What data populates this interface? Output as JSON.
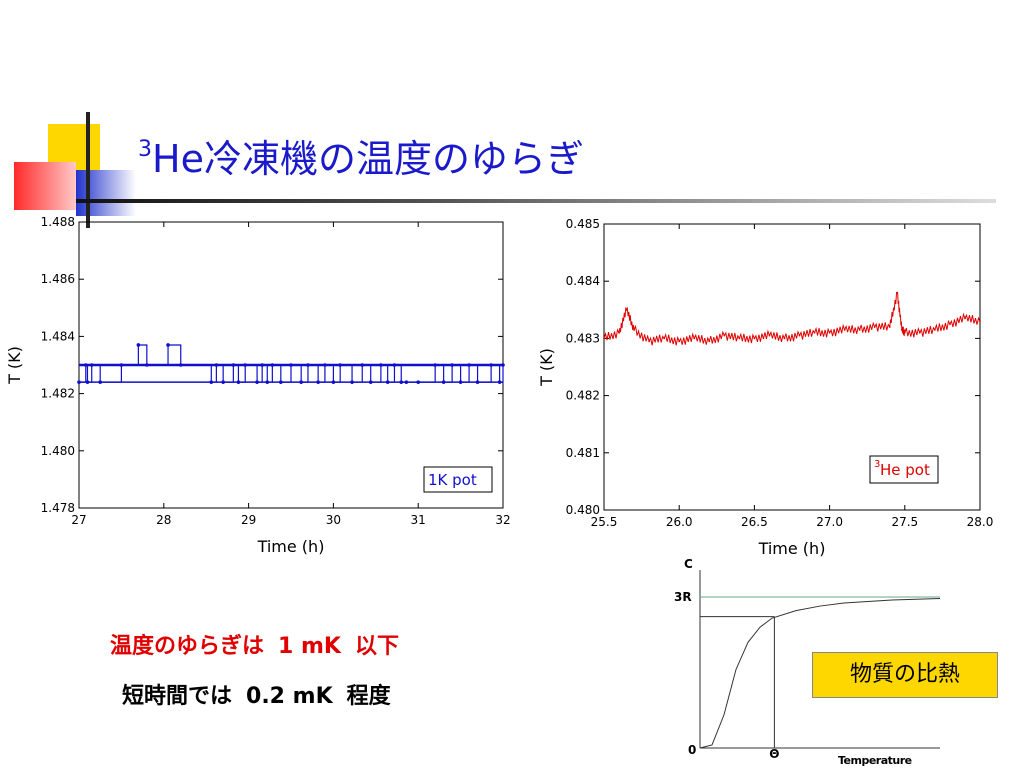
{
  "slide": {
    "title_sup": "3",
    "title_main": "He冷凍機の温度のゆらぎ",
    "line1_a": "温度のゆらぎは",
    "line1_b": "1 mK",
    "line1_c": "以下",
    "line2_a": "短時間では",
    "line2_b": "0.2 mK",
    "line2_c": "程度",
    "callout": "物質の比熱",
    "colors": {
      "title": "#1a1acc",
      "accent_red": "#e00000",
      "callout_bg": "#ffd700",
      "deco_yellow": "#ffd700",
      "deco_blue": "#2233cc",
      "deco_red": "#ff3b3b"
    }
  },
  "chart_data": [
    {
      "type": "line",
      "xlabel": "Time (h)",
      "ylabel": "T (K)",
      "xlim": [
        27,
        32
      ],
      "ylim": [
        1.478,
        1.488
      ],
      "x_ticks": [
        "27",
        "28",
        "29",
        "30",
        "31",
        "32"
      ],
      "y_ticks": [
        "1.478",
        "1.480",
        "1.482",
        "1.484",
        "1.486",
        "1.488"
      ],
      "legend": "1K pot",
      "legend_position": "bottom-right",
      "color": "#1010cc",
      "levels": [
        1.483,
        1.4824,
        1.4837
      ],
      "series": [
        {
          "x": [
            27.0,
            27.08,
            27.1,
            27.15,
            27.25,
            27.5,
            27.7,
            27.8,
            28.05,
            28.2,
            28.56,
            28.62,
            28.7,
            28.82,
            28.88,
            28.96,
            29.1,
            29.16,
            29.22,
            29.28,
            29.38,
            29.5,
            29.62,
            29.7,
            29.82,
            29.9,
            30.0,
            30.08,
            30.22,
            30.34,
            30.44,
            30.56,
            30.64,
            30.72,
            30.8,
            30.86,
            31.0,
            31.2,
            31.3,
            31.4,
            31.5,
            31.6,
            31.7,
            31.86,
            31.96,
            32.0
          ],
          "y": [
            1.4824,
            1.483,
            1.4824,
            1.483,
            1.4824,
            1.483,
            1.4837,
            1.483,
            1.4837,
            1.483,
            1.4824,
            1.483,
            1.4824,
            1.483,
            1.4824,
            1.483,
            1.4824,
            1.483,
            1.4824,
            1.483,
            1.4824,
            1.483,
            1.4824,
            1.483,
            1.4824,
            1.483,
            1.4824,
            1.483,
            1.4824,
            1.483,
            1.4824,
            1.483,
            1.4824,
            1.483,
            1.4824,
            1.4824,
            1.4824,
            1.483,
            1.4824,
            1.483,
            1.4824,
            1.483,
            1.4824,
            1.483,
            1.4824,
            1.483
          ]
        }
      ]
    },
    {
      "type": "line",
      "xlabel": "Time (h)",
      "ylabel": "T (K)",
      "xlim": [
        25.5,
        28.0
      ],
      "ylim": [
        0.48,
        0.485
      ],
      "x_ticks": [
        "25.5",
        "26.0",
        "26.5",
        "27.0",
        "27.5",
        "28.0"
      ],
      "y_ticks": [
        "0.480",
        "0.481",
        "0.482",
        "0.483",
        "0.484",
        "0.485"
      ],
      "legend_sup": "3",
      "legend": "He pot",
      "legend_position": "bottom-right",
      "color": "#e00000",
      "series": [
        {
          "x": [
            25.5,
            25.6,
            25.65,
            25.7,
            25.8,
            25.9,
            26.0,
            26.1,
            26.2,
            26.3,
            26.4,
            26.5,
            26.6,
            26.7,
            26.8,
            26.9,
            27.0,
            27.1,
            27.2,
            27.3,
            27.4,
            27.45,
            27.48,
            27.5,
            27.6,
            27.7,
            27.8,
            27.9,
            28.0
          ],
          "y": [
            0.483,
            0.4831,
            0.4835,
            0.48315,
            0.48295,
            0.483,
            0.48295,
            0.483,
            0.48295,
            0.48305,
            0.483,
            0.483,
            0.48305,
            0.483,
            0.48305,
            0.4831,
            0.4831,
            0.48315,
            0.48315,
            0.4832,
            0.4832,
            0.4838,
            0.48315,
            0.4831,
            0.4831,
            0.48315,
            0.48325,
            0.48335,
            0.4833
          ]
        }
      ]
    },
    {
      "type": "line",
      "xlabel": "Temperature",
      "ylabel": "C",
      "y_ref_label": "3R",
      "x_origin_label": "0",
      "x_marker_label": "Θ",
      "x": [
        0,
        0.05,
        0.1,
        0.15,
        0.2,
        0.25,
        0.3,
        0.4,
        0.5,
        0.6,
        0.7,
        0.8,
        0.9,
        1.0
      ],
      "y": [
        0,
        0.02,
        0.22,
        0.52,
        0.7,
        0.8,
        0.86,
        0.91,
        0.94,
        0.96,
        0.97,
        0.98,
        0.985,
        0.99
      ],
      "marker_x": 0.31,
      "marker_y": 0.87
    }
  ]
}
